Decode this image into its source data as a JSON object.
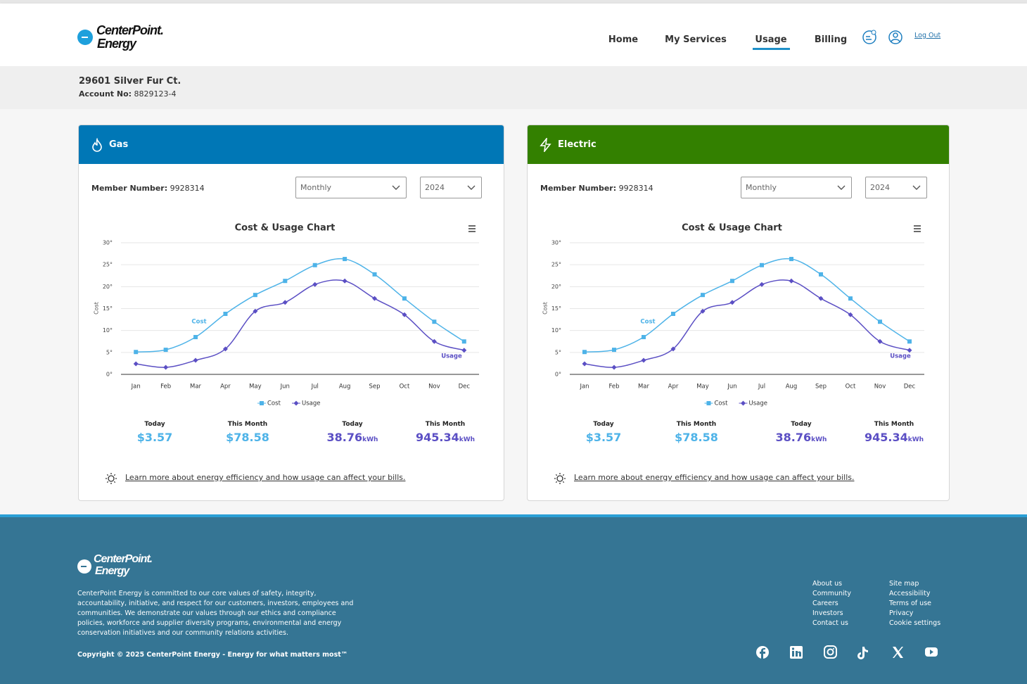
{
  "header": {
    "logo": [
      "CenterPoint.",
      "Energy"
    ],
    "nav": [
      "Home",
      "My Services",
      "Usage",
      "Billing"
    ],
    "logout": "Log Out"
  },
  "account": {
    "address": "29601 Silver Fur Ct.",
    "label": "Account No:",
    "number": "8829123-4"
  },
  "panels": [
    {
      "title": "Gas",
      "member_label": "Member Number:",
      "member_number": "9928314",
      "period": "Monthly",
      "year": "2024",
      "stats": [
        {
          "label": "Today",
          "value": "$3.57"
        },
        {
          "label": "This Month",
          "value": "$78.58"
        },
        {
          "label": "Today",
          "value": "38.76",
          "unit": "kWh"
        },
        {
          "label": "This Month",
          "value": "945.34",
          "unit": "kWh"
        }
      ],
      "tip": "Learn more about energy efficiency and how usage can affect your bills."
    },
    {
      "title": "Electric",
      "member_label": "Member Number:",
      "member_number": "9928314",
      "period": "Monthly",
      "year": "2024",
      "stats": [
        {
          "label": "Today",
          "value": "$3.57"
        },
        {
          "label": "This Month",
          "value": "$78.58"
        },
        {
          "label": "Today",
          "value": "38.76",
          "unit": "kWh"
        },
        {
          "label": "This Month",
          "value": "945.34",
          "unit": "kWh"
        }
      ],
      "tip": "Learn more about energy efficiency and how usage can affect your bills."
    }
  ],
  "chart_data": [
    {
      "type": "line",
      "title": "Cost & Usage Chart",
      "y_label": "Cost",
      "categories": [
        "Jan",
        "Feb",
        "Mar",
        "Apr",
        "May",
        "Jun",
        "Jul",
        "Aug",
        "Sep",
        "Oct",
        "Nov",
        "Dec"
      ],
      "series": [
        {
          "name": "Cost",
          "color": "#4eb3e8",
          "annotation": "Cost",
          "values": [
            5.1,
            5.6,
            8.5,
            13.8,
            18.1,
            21.3,
            24.9,
            26.3,
            22.8,
            17.3,
            12.0,
            7.5
          ]
        },
        {
          "name": "Usage",
          "color": "#5b4fc4",
          "annotation": "Usage",
          "values": [
            2.4,
            1.6,
            3.2,
            5.8,
            14.4,
            16.4,
            20.5,
            21.3,
            17.3,
            13.6,
            7.5,
            5.5
          ]
        }
      ],
      "ylim": [
        0,
        30
      ],
      "yticks": [
        {
          "value": 0,
          "label": "0°"
        },
        {
          "value": 5,
          "label": "5°"
        },
        {
          "value": 10,
          "label": "10°"
        },
        {
          "value": 15,
          "label": "15°"
        },
        {
          "value": 20,
          "label": "20°"
        },
        {
          "value": 25,
          "label": "25°"
        },
        {
          "value": 30,
          "label": "30°"
        }
      ],
      "grid": true,
      "legend": "bottom"
    },
    {
      "type": "line",
      "title": "Cost & Usage Chart",
      "y_label": "Cost",
      "categories": [
        "Jan",
        "Feb",
        "Mar",
        "Apr",
        "May",
        "Jun",
        "Jul",
        "Aug",
        "Sep",
        "Oct",
        "Nov",
        "Dec"
      ],
      "series": [
        {
          "name": "Cost",
          "color": "#4eb3e8",
          "annotation": "Cost",
          "values": [
            5.1,
            5.6,
            8.5,
            13.8,
            18.1,
            21.3,
            24.9,
            26.3,
            22.8,
            17.3,
            12.0,
            7.5
          ]
        },
        {
          "name": "Usage",
          "color": "#5b4fc4",
          "annotation": "Usage",
          "values": [
            2.4,
            1.6,
            3.2,
            5.8,
            14.4,
            16.4,
            20.5,
            21.3,
            17.3,
            13.6,
            7.5,
            5.5
          ]
        }
      ],
      "ylim": [
        0,
        30
      ],
      "yticks": [
        {
          "value": 0,
          "label": "0°"
        },
        {
          "value": 5,
          "label": "5°"
        },
        {
          "value": 10,
          "label": "10°"
        },
        {
          "value": 15,
          "label": "15°"
        },
        {
          "value": 20,
          "label": "20°"
        },
        {
          "value": 25,
          "label": "25°"
        },
        {
          "value": 30,
          "label": "30°"
        }
      ],
      "grid": true,
      "legend": "bottom"
    }
  ],
  "footer": {
    "about": "CenterPoint Energy is committed to our core values of safety, integrity, accountability, initiative, and respect for our customers, investors, employees and communities. We demonstrate our values through our ethics and compliance policies, workforce and supplier diversity programs, environmental and energy conservation initiatives and our community relations activities.",
    "copyright": "Copyright © 2025 CenterPoint Energy - Energy for what matters most™",
    "links": [
      [
        "About us",
        "Community",
        "Careers",
        "Investors",
        "Contact us"
      ],
      [
        "Site map",
        "Accessibility",
        "Terms of use",
        "Privacy",
        "Cookie settings"
      ]
    ]
  }
}
